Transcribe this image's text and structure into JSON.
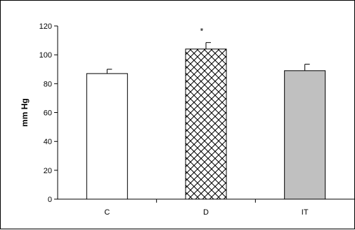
{
  "chart_data": {
    "type": "bar",
    "categories": [
      "C",
      "D",
      "IT"
    ],
    "values": [
      87,
      104,
      89
    ],
    "errors": [
      3,
      4.5,
      4.5
    ],
    "ylabel": "mm Hg",
    "xlabel": "",
    "ylim": [
      0,
      120
    ],
    "yticks": [
      "0",
      "20",
      "40",
      "60",
      "80",
      "100",
      "120"
    ],
    "annotations": [
      {
        "category": "D",
        "text": "*"
      }
    ],
    "bar_fills": [
      "white",
      "crosshatch",
      "#c0c0c0"
    ],
    "grid": false,
    "legend": "none"
  }
}
